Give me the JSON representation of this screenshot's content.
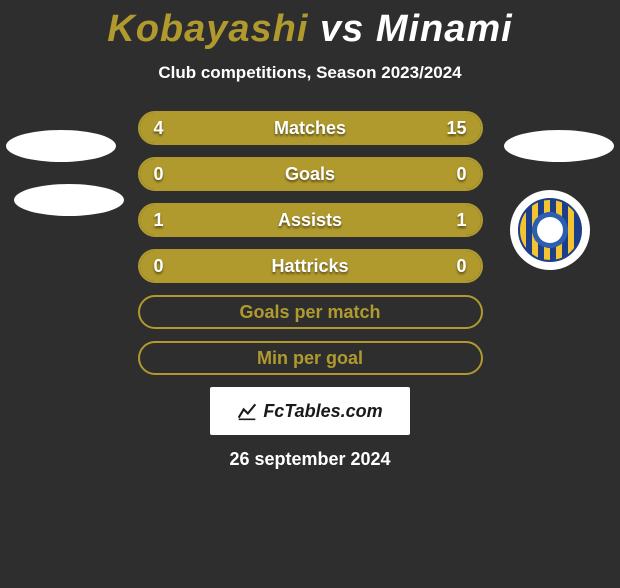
{
  "title": {
    "left": "Kobayashi",
    "vs": "vs",
    "right": "Minami"
  },
  "subtitle": "Club competitions, Season 2023/2024",
  "colors": {
    "accent": "#b09a2e",
    "background": "#2e2e2e",
    "text": "#ffffff",
    "brand_bg": "#ffffff",
    "brand_text": "#1a1a1a"
  },
  "brand": "FcTables.com",
  "date": "26 september 2024",
  "rows": [
    {
      "label": "Matches",
      "left": "4",
      "right": "15",
      "fill_left_pct": 42,
      "fill_right_pct": 58,
      "empty": false
    },
    {
      "label": "Goals",
      "left": "0",
      "right": "0",
      "fill_left_pct": 50,
      "fill_right_pct": 50,
      "empty": false
    },
    {
      "label": "Assists",
      "left": "1",
      "right": "1",
      "fill_left_pct": 50,
      "fill_right_pct": 50,
      "empty": false
    },
    {
      "label": "Hattricks",
      "left": "0",
      "right": "0",
      "fill_left_pct": 50,
      "fill_right_pct": 50,
      "empty": false
    },
    {
      "label": "Goals per match",
      "left": "",
      "right": "",
      "fill_left_pct": 0,
      "fill_right_pct": 0,
      "empty": true
    },
    {
      "label": "Min per goal",
      "left": "",
      "right": "",
      "fill_left_pct": 0,
      "fill_right_pct": 0,
      "empty": true
    }
  ]
}
